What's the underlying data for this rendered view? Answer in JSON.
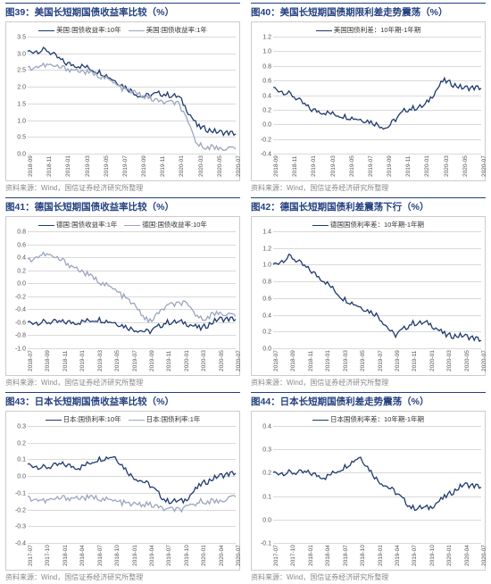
{
  "source_text": "资料来源：Wind，国信证券经济研究所整理",
  "colors": {
    "primary": "#1e3a6e",
    "secondary": "#9aa6bf",
    "grid": "#d9d9d9",
    "title": "#234080"
  },
  "charts": [
    {
      "id": "c39",
      "title": "图39：美国长短期国债收益率比较（%）",
      "ymin": 0,
      "ymax": 3.5,
      "ystep": 0.5,
      "ydecimals": 1,
      "x_labels": [
        "2018-09",
        "2018-11",
        "2019-01",
        "2019-03",
        "2019-05",
        "2019-07",
        "2019-09",
        "2019-11",
        "2020-01",
        "2020-03",
        "2020-05",
        "2020-07"
      ],
      "legend": [
        {
          "label": "美国:国债收益率:10年",
          "color": "#1e3a6e"
        },
        {
          "label": "美国:国债收益率:1年",
          "color": "#9aa6bf"
        }
      ],
      "series": [
        {
          "color": "#1e3a6e",
          "values": [
            3.05,
            3.1,
            2.7,
            2.6,
            2.4,
            2.05,
            1.7,
            1.8,
            1.7,
            0.8,
            0.65,
            0.6
          ]
        },
        {
          "color": "#9aa6bf",
          "values": [
            2.55,
            2.65,
            2.55,
            2.45,
            2.3,
            1.95,
            1.75,
            1.55,
            1.5,
            0.25,
            0.17,
            0.15
          ]
        }
      ]
    },
    {
      "id": "c40",
      "title": "图40：美国长短期国债期限利差走势震荡（%）",
      "ymin": -0.4,
      "ymax": 1.2,
      "ystep": 0.2,
      "ydecimals": 1,
      "x_labels": [
        "2018-09",
        "2018-11",
        "2019-01",
        "2019-03",
        "2019-05",
        "2019-07",
        "2019-09",
        "2019-11",
        "2020-01",
        "2020-03",
        "2020-05",
        "2020-07"
      ],
      "legend": [
        {
          "label": "美国国债利差：10年期-1年期",
          "color": "#1e3a6e"
        }
      ],
      "series": [
        {
          "color": "#1e3a6e",
          "values": [
            0.5,
            0.4,
            0.2,
            0.15,
            0.1,
            0.05,
            -0.05,
            0.2,
            0.25,
            0.6,
            0.5,
            0.5
          ]
        }
      ]
    },
    {
      "id": "c41",
      "title": "图41：德国长短期国债收益率比较（%）",
      "ymin": -1.0,
      "ymax": 0.8,
      "ystep": 0.2,
      "ydecimals": 1,
      "x_labels": [
        "2018-07",
        "2018-09",
        "2018-11",
        "2019-01",
        "2019-03",
        "2019-05",
        "2019-07",
        "2019-09",
        "2019-11",
        "2020-01",
        "2020-03",
        "2020-05",
        "2020-07"
      ],
      "legend": [
        {
          "label": "德国:国债收益率:1年",
          "color": "#1e3a6e"
        },
        {
          "label": "德国:国债收益率:10年",
          "color": "#9aa6bf"
        }
      ],
      "series": [
        {
          "color": "#1e3a6e",
          "values": [
            -0.6,
            -0.6,
            -0.6,
            -0.6,
            -0.55,
            -0.6,
            -0.7,
            -0.75,
            -0.6,
            -0.6,
            -0.7,
            -0.55,
            -0.55
          ]
        },
        {
          "color": "#9aa6bf",
          "values": [
            0.35,
            0.45,
            0.35,
            0.2,
            0.05,
            -0.1,
            -0.3,
            -0.6,
            -0.35,
            -0.3,
            -0.55,
            -0.45,
            -0.5
          ]
        }
      ]
    },
    {
      "id": "c42",
      "title": "图42：德国长短期国债利差震荡下行（%）",
      "ymin": 0,
      "ymax": 1.4,
      "ystep": 0.2,
      "ydecimals": 1,
      "x_labels": [
        "2018-07",
        "2018-09",
        "2018-11",
        "2019-01",
        "2019-03",
        "2019-05",
        "2019-07",
        "2019-09",
        "2019-11",
        "2020-01",
        "2020-03",
        "2020-05",
        "2020-07"
      ],
      "legend": [
        {
          "label": "德国国债利率差：10年期-1年期",
          "color": "#1e3a6e"
        }
      ],
      "series": [
        {
          "color": "#1e3a6e",
          "values": [
            1.0,
            1.1,
            0.95,
            0.8,
            0.6,
            0.5,
            0.4,
            0.15,
            0.3,
            0.3,
            0.15,
            0.15,
            0.1
          ]
        }
      ]
    },
    {
      "id": "c43",
      "title": "图43：日本长短期国债收益率比较（%）",
      "ymin": -0.4,
      "ymax": 0.3,
      "ystep": 0.1,
      "ydecimals": 1,
      "x_labels": [
        "2017-07",
        "2017-10",
        "2018-01",
        "2018-04",
        "2018-07",
        "2018-10",
        "2019-01",
        "2019-04",
        "2019-07",
        "2019-10",
        "2020-01",
        "2020-04",
        "2020-07"
      ],
      "legend": [
        {
          "label": "日本:国债利率:10年",
          "color": "#1e3a6e"
        },
        {
          "label": "日本:国债利率:1年",
          "color": "#9aa6bf"
        }
      ],
      "series": [
        {
          "color": "#1e3a6e",
          "values": [
            0.07,
            0.05,
            0.07,
            0.05,
            0.1,
            0.12,
            0.0,
            -0.05,
            -0.15,
            -0.15,
            -0.05,
            0.0,
            0.02
          ]
        },
        {
          "color": "#9aa6bf",
          "values": [
            -0.13,
            -0.15,
            -0.13,
            -0.13,
            -0.13,
            -0.15,
            -0.17,
            -0.17,
            -0.2,
            -0.2,
            -0.15,
            -0.15,
            -0.12
          ]
        }
      ]
    },
    {
      "id": "c44",
      "title": "图44：日本长短期国债利差走势震荡（%）",
      "ymin": -0.1,
      "ymax": 0.4,
      "ystep": 0.1,
      "ydecimals": 1,
      "x_labels": [
        "2017-07",
        "2017-10",
        "2018-01",
        "2018-04",
        "2018-07",
        "2018-10",
        "2019-01",
        "2019-04",
        "2019-07",
        "2019-10",
        "2020-01",
        "2020-04",
        "2020-07"
      ],
      "legend": [
        {
          "label": "日本国债利率差：10年期-1年期",
          "color": "#1e3a6e"
        }
      ],
      "series": [
        {
          "color": "#1e3a6e",
          "values": [
            0.2,
            0.2,
            0.2,
            0.18,
            0.22,
            0.27,
            0.17,
            0.12,
            0.05,
            0.05,
            0.1,
            0.15,
            0.14
          ]
        }
      ]
    }
  ]
}
